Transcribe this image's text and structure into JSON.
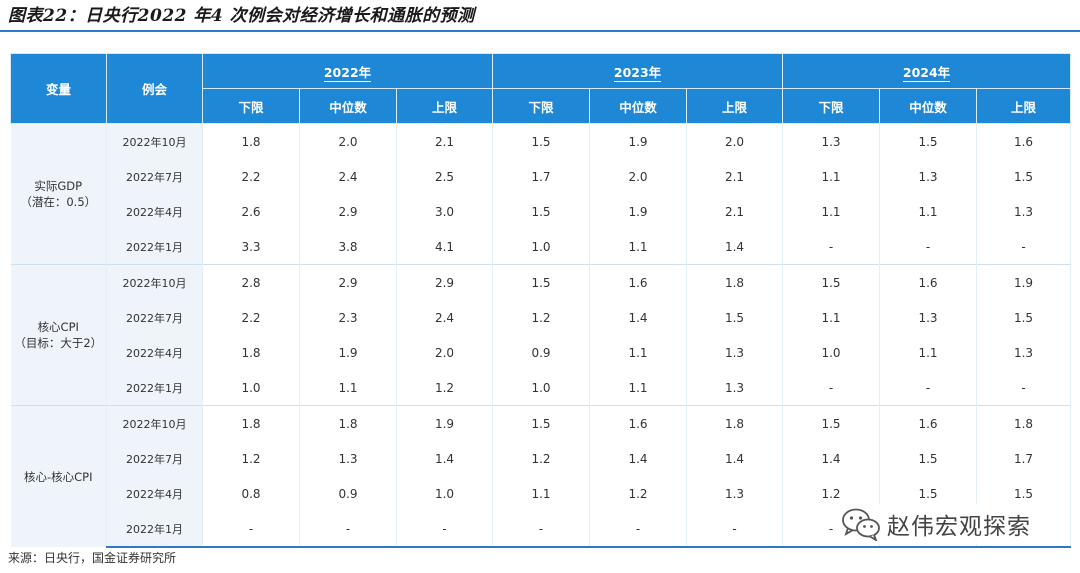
{
  "title": "图表22：日央行2022 年4 次例会对经济增长和通胀的预测",
  "headers": {
    "variable": "变量",
    "meeting": "例会",
    "years": [
      "2022年",
      "2023年",
      "2024年"
    ],
    "subcols": [
      "下限",
      "中位数",
      "上限"
    ]
  },
  "groups": [
    {
      "label": "实际GDP",
      "sublabel": "（潜在：0.5）",
      "rows": [
        {
          "meeting": "2022年10月",
          "values": [
            "1.8",
            "2.0",
            "2.1",
            "1.5",
            "1.9",
            "2.0",
            "1.3",
            "1.5",
            "1.6"
          ]
        },
        {
          "meeting": "2022年7月",
          "values": [
            "2.2",
            "2.4",
            "2.5",
            "1.7",
            "2.0",
            "2.1",
            "1.1",
            "1.3",
            "1.5"
          ]
        },
        {
          "meeting": "2022年4月",
          "values": [
            "2.6",
            "2.9",
            "3.0",
            "1.5",
            "1.9",
            "2.1",
            "1.1",
            "1.1",
            "1.3"
          ]
        },
        {
          "meeting": "2022年1月",
          "values": [
            "3.3",
            "3.8",
            "4.1",
            "1.0",
            "1.1",
            "1.4",
            "-",
            "-",
            "-"
          ]
        }
      ]
    },
    {
      "label": "核心CPI",
      "sublabel": "（目标：大于2）",
      "rows": [
        {
          "meeting": "2022年10月",
          "values": [
            "2.8",
            "2.9",
            "2.9",
            "1.5",
            "1.6",
            "1.8",
            "1.5",
            "1.6",
            "1.9"
          ]
        },
        {
          "meeting": "2022年7月",
          "values": [
            "2.2",
            "2.3",
            "2.4",
            "1.2",
            "1.4",
            "1.5",
            "1.1",
            "1.3",
            "1.5"
          ]
        },
        {
          "meeting": "2022年4月",
          "values": [
            "1.8",
            "1.9",
            "2.0",
            "0.9",
            "1.1",
            "1.3",
            "1.0",
            "1.1",
            "1.3"
          ]
        },
        {
          "meeting": "2022年1月",
          "values": [
            "1.0",
            "1.1",
            "1.2",
            "1.0",
            "1.1",
            "1.3",
            "-",
            "-",
            "-"
          ]
        }
      ]
    },
    {
      "label": "核心-核心CPI",
      "sublabel": "",
      "rows": [
        {
          "meeting": "2022年10月",
          "values": [
            "1.8",
            "1.8",
            "1.9",
            "1.5",
            "1.6",
            "1.8",
            "1.5",
            "1.6",
            "1.8"
          ]
        },
        {
          "meeting": "2022年7月",
          "values": [
            "1.2",
            "1.3",
            "1.4",
            "1.2",
            "1.4",
            "1.4",
            "1.4",
            "1.5",
            "1.7"
          ]
        },
        {
          "meeting": "2022年4月",
          "values": [
            "0.8",
            "0.9",
            "1.0",
            "1.1",
            "1.2",
            "1.3",
            "1.2",
            "1.5",
            "1.5"
          ]
        },
        {
          "meeting": "2022年1月",
          "values": [
            "-",
            "-",
            "-",
            "-",
            "-",
            "-",
            "-",
            "-",
            "-"
          ]
        }
      ]
    }
  ],
  "source": "来源：日央行，国金证券研究所",
  "watermark": "赵伟宏观探索",
  "colors": {
    "header_bg": "#1e88d6",
    "label_bg": "#eef4fa",
    "rule": "#2a7ac9"
  }
}
